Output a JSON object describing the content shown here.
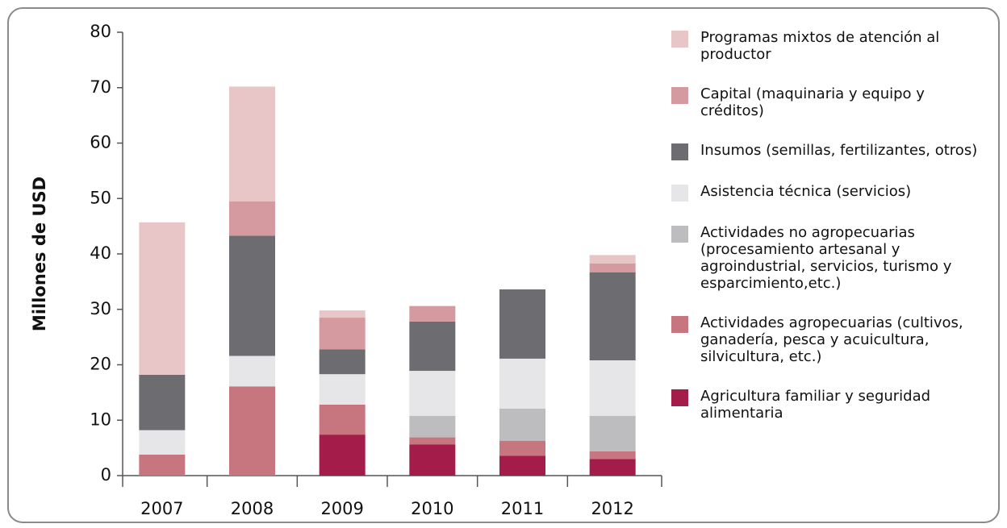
{
  "chart_data": {
    "type": "stacked_bar",
    "y_label": "Millones de USD",
    "categories": [
      "2007",
      "2008",
      "2009",
      "2010",
      "2011",
      "2012"
    ],
    "ylim": [
      0,
      80
    ],
    "yticks": [
      0,
      10,
      20,
      30,
      40,
      50,
      60,
      70,
      80
    ],
    "series": [
      {
        "name": "Agricultura familiar y seguridad alimentaria",
        "color": "#a31c4a",
        "values": [
          0,
          0,
          7.4,
          5.6,
          3.6,
          3.0
        ]
      },
      {
        "name": "Actividades agropecuarias (cultivos, ganadería, pesca y acuicultura, silvicultura, etc.)",
        "color": "#c7767f",
        "values": [
          3.8,
          16.1,
          5.4,
          1.3,
          2.7,
          1.4
        ]
      },
      {
        "name": "Actividades no agropecuarias (procesamiento artesanal y agroindustrial, servicios, turismo y esparcimiento,etc.)",
        "color": "#bdbdbf",
        "values": [
          0,
          0,
          0,
          3.9,
          5.8,
          6.4
        ]
      },
      {
        "name": "Asistencia técnica (servicios)",
        "color": "#e6e6e8",
        "values": [
          4.4,
          5.5,
          5.5,
          8.1,
          9.0,
          10.0
        ]
      },
      {
        "name": "Insumos (semillas, fertilizantes, otros)",
        "color": "#6d6d71",
        "values": [
          10.0,
          21.7,
          4.5,
          8.9,
          12.5,
          15.9
        ]
      },
      {
        "name": "Capital (maquinaria y equipo y créditos)",
        "color": "#d49aa0",
        "values": [
          0,
          6.2,
          5.7,
          2.8,
          0,
          1.6
        ]
      },
      {
        "name": "Programas mixtos de atención al productor",
        "color": "#e8c6c8",
        "values": [
          27.5,
          20.7,
          1.3,
          0,
          0,
          1.5
        ]
      }
    ]
  }
}
